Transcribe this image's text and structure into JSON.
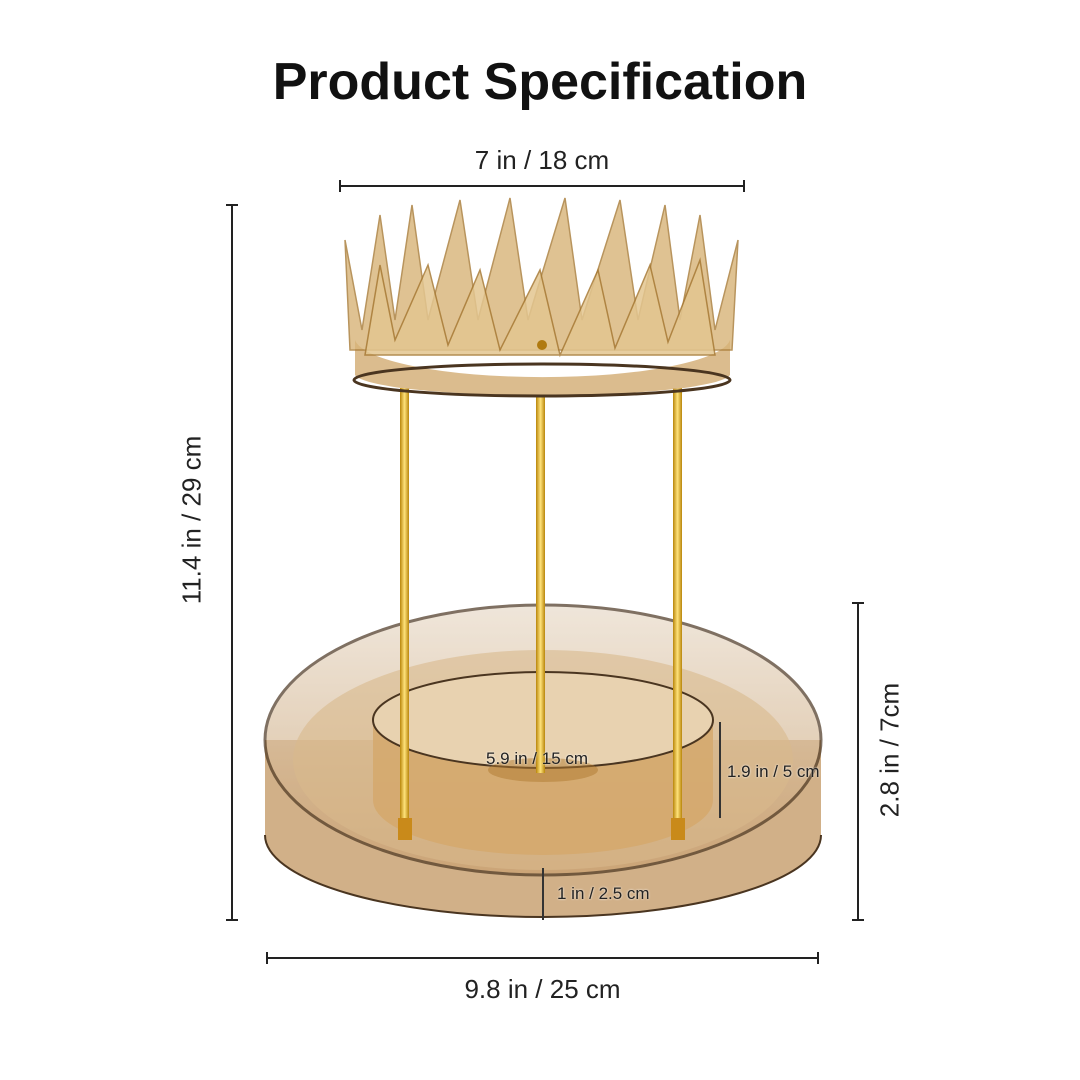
{
  "title": "Product Specification",
  "dimensions": {
    "top_width": "7 in / 18 cm",
    "total_height": "11.4 in / 29 cm",
    "base_height": "2.8 in / 7cm",
    "base_width": "9.8 in / 25 cm",
    "inner_diameter": "5.9 in / 15 cm",
    "inner_wall_height": "1.9 in / 5 cm",
    "compartment_width": "1 in / 2.5 cm"
  },
  "colors": {
    "amber": "#c9a273",
    "gold": "#e0b430",
    "dark_rim": "#4a3520"
  }
}
